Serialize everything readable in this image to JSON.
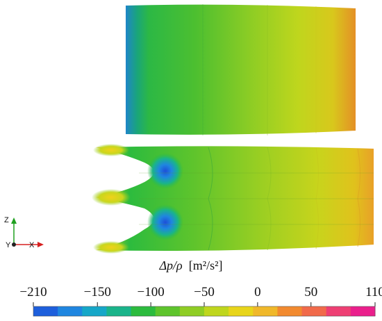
{
  "colorbar": {
    "title_symbol": "Δp/ρ",
    "title_unit": "[m²/s²]",
    "min": -210,
    "max": 110,
    "ticks": [
      {
        "value": -210,
        "label": "−210"
      },
      {
        "value": -150,
        "label": "−150"
      },
      {
        "value": -100,
        "label": "−100"
      },
      {
        "value": -50,
        "label": "−50"
      },
      {
        "value": 0,
        "label": "0"
      },
      {
        "value": 50,
        "label": "50"
      },
      {
        "value": 110,
        "label": "110"
      }
    ],
    "colors": [
      "#1e5fdc",
      "#1f86e0",
      "#16a7c8",
      "#1ab48a",
      "#2cbb3e",
      "#5ec42c",
      "#8fcd24",
      "#bfd61d",
      "#e8d51a",
      "#f0b82a",
      "#f28a2f",
      "#f16a4a",
      "#ee3f74",
      "#ea1f8c"
    ]
  },
  "axes": {
    "z": "Z",
    "x": "X",
    "y": "Y"
  },
  "colors": {
    "x_axis": "#d62020",
    "z_axis": "#1fa01f",
    "y_axis": "#222222"
  }
}
